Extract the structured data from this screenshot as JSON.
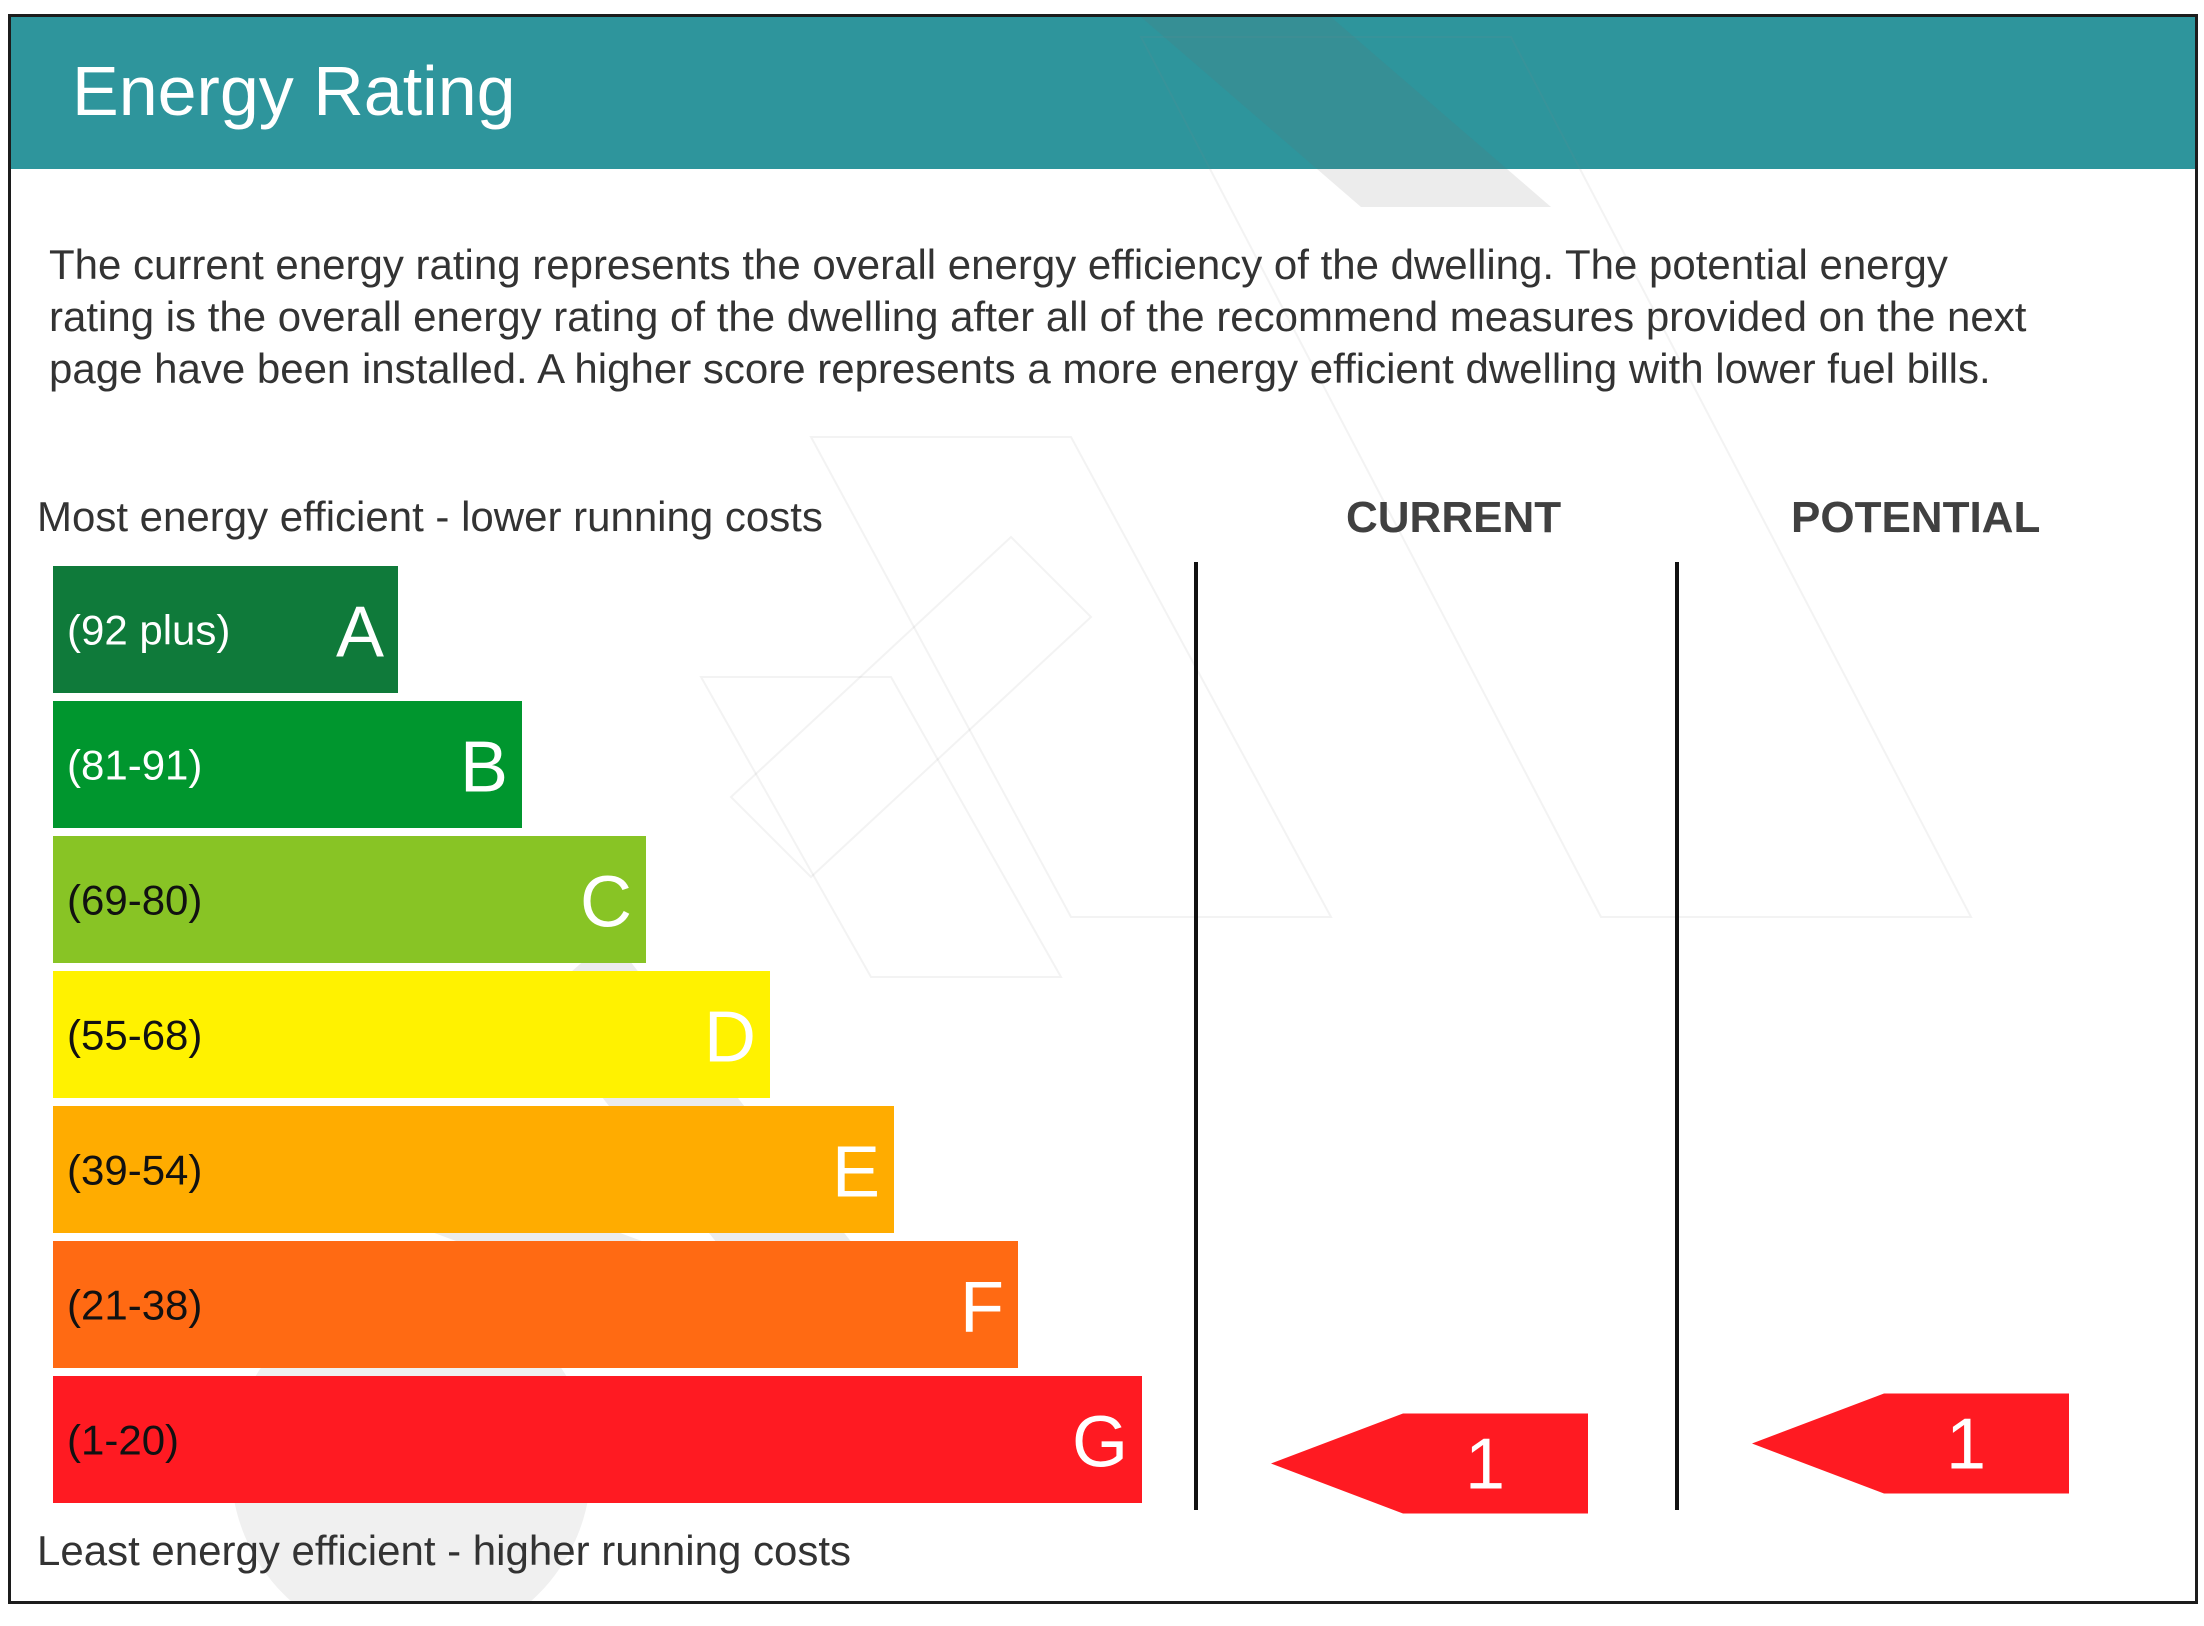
{
  "header": {
    "title": "Energy Rating",
    "color": "#2e959c"
  },
  "intro_text": "The current energy rating represents the overall energy efficiency of the dwelling. The potential energy rating is the overall energy rating of the dwelling after all of the recommend measures provided on the next page have been installed. A higher score represents a more energy efficient dwelling with lower fuel bills.",
  "labels": {
    "top": "Most energy efficient - lower running costs",
    "bottom": "Least energy efficient - higher running costs"
  },
  "columns": {
    "current": "CURRENT",
    "potential": "POTENTIAL"
  },
  "chart_data": {
    "type": "bar",
    "title": "",
    "categories": [
      "A",
      "B",
      "C",
      "D",
      "E",
      "F",
      "G"
    ],
    "ranges": [
      "(92 plus)",
      "(81-91)",
      "(69-80)",
      "(55-68)",
      "(39-54)",
      "(21-38)",
      "(1-20)"
    ],
    "colors": [
      "#0f7a3a",
      "#00962e",
      "#88c425",
      "#fff200",
      "#ffac00",
      "#ff6a13",
      "#ff1a22"
    ],
    "range_text_colors": [
      "#ffffff",
      "#ffffff",
      "#111111",
      "#111111",
      "#111111",
      "#111111",
      "#111111"
    ],
    "letter_colors": [
      "#ffffff",
      "#ffffff",
      "#ffffff",
      "#ffffff",
      "#ffffff",
      "#ffffff",
      "#ffffff"
    ],
    "current": {
      "value": 1,
      "band": "G",
      "color": "#ff1a22"
    },
    "potential": {
      "value": 1,
      "band": "G",
      "color": "#ff1a22"
    }
  }
}
